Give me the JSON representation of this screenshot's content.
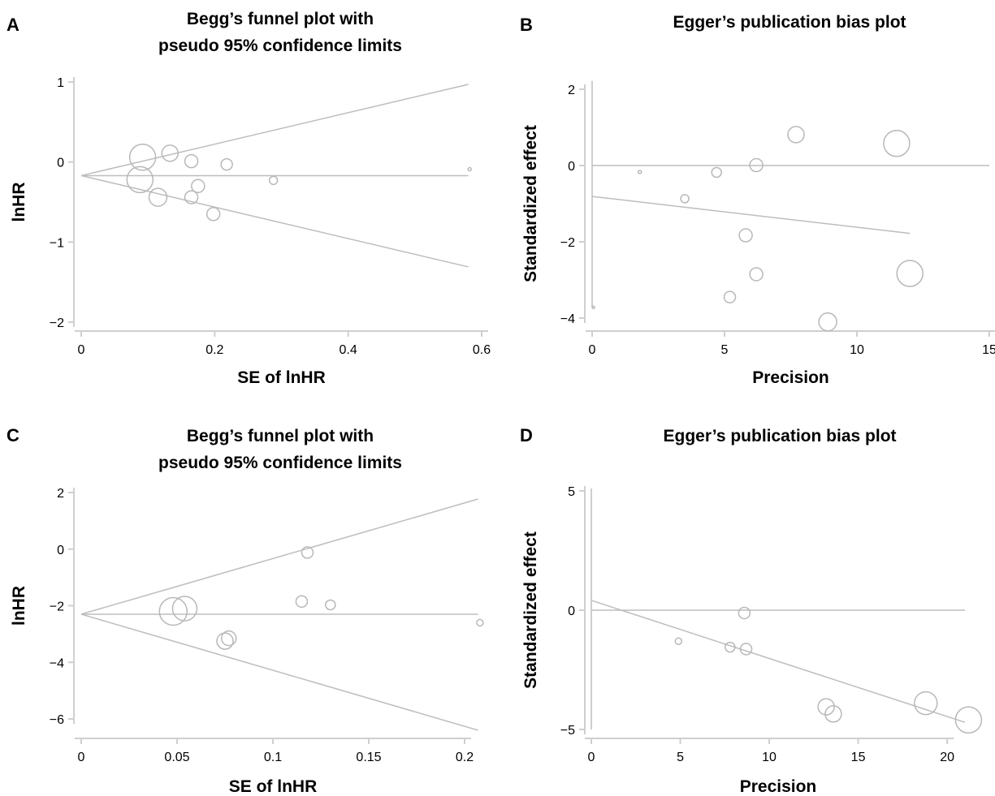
{
  "colors": {
    "lines": "#bdbdbd",
    "points": "#b8b8b8",
    "axes": "#cfcfcf",
    "text": "#000000"
  },
  "chart_data": [
    {
      "panel": "A",
      "type": "scatter",
      "title": [
        "Begg’s funnel plot with",
        "pseudo 95% confidence limits"
      ],
      "xlabel": "SE of lnHR",
      "ylabel": "lnHR",
      "xlim": [
        0,
        0.6
      ],
      "ylim": [
        -2,
        1
      ],
      "xticks": [
        0,
        0.2,
        0.4,
        0.6
      ],
      "xtick_labels": [
        "0",
        "0.2",
        "0.4",
        "0.6"
      ],
      "yticks": [
        1,
        0,
        -1,
        -2
      ],
      "ytick_labels": [
        "1",
        "0",
        "−1",
        "−2"
      ],
      "points": [
        {
          "x": 0.092,
          "y": 0.06,
          "size": 16
        },
        {
          "x": 0.088,
          "y": -0.22,
          "size": 16
        },
        {
          "x": 0.133,
          "y": 0.11,
          "size": 10
        },
        {
          "x": 0.115,
          "y": -0.44,
          "size": 11
        },
        {
          "x": 0.165,
          "y": 0.01,
          "size": 8
        },
        {
          "x": 0.165,
          "y": -0.44,
          "size": 8
        },
        {
          "x": 0.175,
          "y": -0.3,
          "size": 8
        },
        {
          "x": 0.198,
          "y": -0.65,
          "size": 8
        },
        {
          "x": 0.218,
          "y": -0.03,
          "size": 7
        },
        {
          "x": 0.288,
          "y": -0.23,
          "size": 5
        },
        {
          "x": 0.582,
          "y": -0.09,
          "size": 2
        }
      ],
      "lines": [
        {
          "role": "pooled-estimate",
          "x": [
            0,
            0.58
          ],
          "y": [
            -0.17,
            -0.17
          ]
        },
        {
          "role": "upper-limit",
          "x": [
            0,
            0.58
          ],
          "y": [
            -0.17,
            0.97
          ]
        },
        {
          "role": "lower-limit",
          "x": [
            0,
            0.58
          ],
          "y": [
            -0.17,
            -1.31
          ]
        }
      ]
    },
    {
      "panel": "B",
      "type": "scatter",
      "title": [
        "Egger’s publication bias plot"
      ],
      "xlabel": "Precision",
      "ylabel": "Standardized effect",
      "xlim": [
        0,
        15
      ],
      "ylim": [
        -4,
        2
      ],
      "xticks": [
        0,
        5,
        10,
        15
      ],
      "xtick_labels": [
        "0",
        "5",
        "10",
        "15"
      ],
      "yticks": [
        2,
        0,
        -2,
        -4
      ],
      "ytick_labels": [
        "2",
        "0",
        "−2",
        "−4"
      ],
      "points": [
        {
          "x": 1.8,
          "y": -0.17,
          "size": 2
        },
        {
          "x": 3.5,
          "y": -0.87,
          "size": 5
        },
        {
          "x": 4.7,
          "y": -0.18,
          "size": 6
        },
        {
          "x": 6.2,
          "y": 0.01,
          "size": 8
        },
        {
          "x": 5.8,
          "y": -1.83,
          "size": 8
        },
        {
          "x": 6.2,
          "y": -2.85,
          "size": 8
        },
        {
          "x": 5.2,
          "y": -3.45,
          "size": 7
        },
        {
          "x": 7.7,
          "y": 0.81,
          "size": 10
        },
        {
          "x": 8.9,
          "y": -4.1,
          "size": 11
        },
        {
          "x": 11.5,
          "y": 0.58,
          "size": 16
        },
        {
          "x": 12.0,
          "y": -2.83,
          "size": 16
        },
        {
          "x": 0.05,
          "y": -3.72,
          "size": 1
        }
      ],
      "lines": [
        {
          "role": "zero-line",
          "x": [
            0,
            15
          ],
          "y": [
            0,
            0
          ]
        },
        {
          "role": "regression",
          "x": [
            0,
            12
          ],
          "y": [
            -0.81,
            -1.78
          ]
        },
        {
          "role": "intercept-ci",
          "x": [
            0,
            0
          ],
          "y": [
            -3.72,
            2.22
          ]
        }
      ]
    },
    {
      "panel": "C",
      "type": "scatter",
      "title": [
        "Begg’s funnel plot with",
        "pseudo 95% confidence limits"
      ],
      "xlabel": "SE of lnHR",
      "ylabel": "lnHR",
      "xlim": [
        0,
        0.2
      ],
      "ylim": [
        -6,
        2
      ],
      "xticks": [
        0,
        0.05,
        0.1,
        0.15,
        0.2
      ],
      "xtick_labels": [
        "0",
        "0.05",
        "0.1",
        "0.15",
        "0.2"
      ],
      "yticks": [
        2,
        0,
        -2,
        -4,
        -6
      ],
      "ytick_labels": [
        "2",
        "0",
        "−2",
        "−4",
        "−6"
      ],
      "points": [
        {
          "x": 0.048,
          "y": -2.2,
          "size": 17
        },
        {
          "x": 0.054,
          "y": -2.1,
          "size": 15
        },
        {
          "x": 0.075,
          "y": -3.25,
          "size": 10
        },
        {
          "x": 0.077,
          "y": -3.15,
          "size": 9
        },
        {
          "x": 0.115,
          "y": -1.85,
          "size": 7
        },
        {
          "x": 0.118,
          "y": -0.12,
          "size": 7
        },
        {
          "x": 0.13,
          "y": -1.97,
          "size": 6
        },
        {
          "x": 0.208,
          "y": -2.6,
          "size": 4
        }
      ],
      "lines": [
        {
          "role": "pooled-estimate",
          "x": [
            0,
            0.207
          ],
          "y": [
            -2.3,
            -2.3
          ]
        },
        {
          "role": "upper-limit",
          "x": [
            0,
            0.207
          ],
          "y": [
            -2.3,
            1.77
          ]
        },
        {
          "role": "lower-limit",
          "x": [
            0,
            0.207
          ],
          "y": [
            -2.3,
            -6.4
          ]
        }
      ]
    },
    {
      "panel": "D",
      "type": "scatter",
      "title": [
        "Egger’s publication bias plot"
      ],
      "xlabel": "Precision",
      "ylabel": "Standardized effect",
      "xlim": [
        0,
        21
      ],
      "ylim": [
        -5,
        5
      ],
      "xticks": [
        0,
        5,
        10,
        15,
        20
      ],
      "xtick_labels": [
        "0",
        "5",
        "10",
        "15",
        "20"
      ],
      "yticks": [
        5,
        0,
        -5
      ],
      "ytick_labels": [
        "5",
        "0",
        "−5"
      ],
      "points": [
        {
          "x": 4.9,
          "y": -1.3,
          "size": 4
        },
        {
          "x": 7.8,
          "y": -1.55,
          "size": 6
        },
        {
          "x": 8.7,
          "y": -1.63,
          "size": 7
        },
        {
          "x": 8.6,
          "y": -0.12,
          "size": 7
        },
        {
          "x": 13.2,
          "y": -4.05,
          "size": 10
        },
        {
          "x": 13.6,
          "y": -4.35,
          "size": 10
        },
        {
          "x": 18.8,
          "y": -3.9,
          "size": 14
        },
        {
          "x": 21.2,
          "y": -4.6,
          "size": 16
        }
      ],
      "lines": [
        {
          "role": "zero-line",
          "x": [
            0,
            21
          ],
          "y": [
            0,
            0
          ]
        },
        {
          "role": "regression",
          "x": [
            0,
            21
          ],
          "y": [
            0.41,
            -4.7
          ]
        },
        {
          "role": "intercept-ci",
          "x": [
            0,
            0
          ],
          "y": [
            -5.0,
            5.1
          ]
        }
      ]
    }
  ]
}
